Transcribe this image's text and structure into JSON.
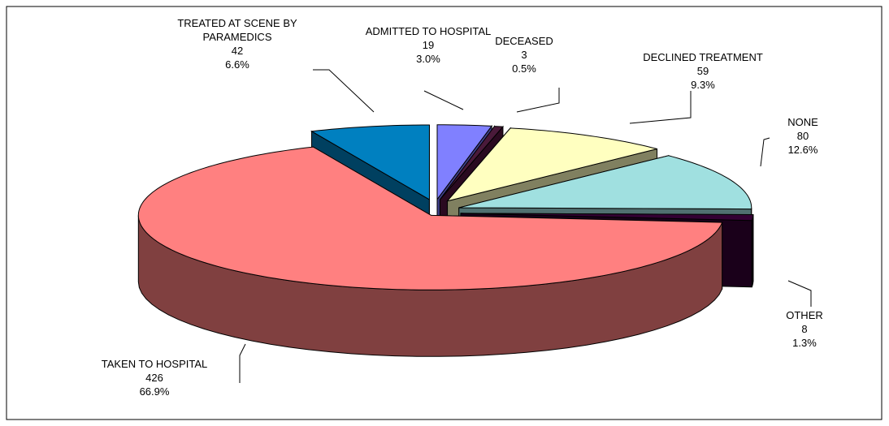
{
  "chart_data": {
    "type": "pie3d",
    "categories": [
      "ADMITTED TO HOSPITAL",
      "DECEASED",
      "DECLINED TREATMENT",
      "NONE",
      "OTHER",
      "TAKEN TO HOSPITAL",
      "TREATED AT SCENE BY PARAMEDICS"
    ],
    "values": [
      19,
      3,
      59,
      80,
      8,
      426,
      42
    ],
    "percent_labels": [
      "3.0%",
      "0.5%",
      "9.3%",
      "12.6%",
      "1.3%",
      "66.9%",
      "6.6%"
    ],
    "colors": [
      "#8080FF",
      "#4A1A3A",
      "#FFFFC0",
      "#A0E0E0",
      "#330033",
      "#FF8080",
      "#0080C0"
    ],
    "side_colors": [
      "#40408A",
      "#2A0A20",
      "#808060",
      "#507070",
      "#1A001A",
      "#804040",
      "#004060"
    ]
  }
}
